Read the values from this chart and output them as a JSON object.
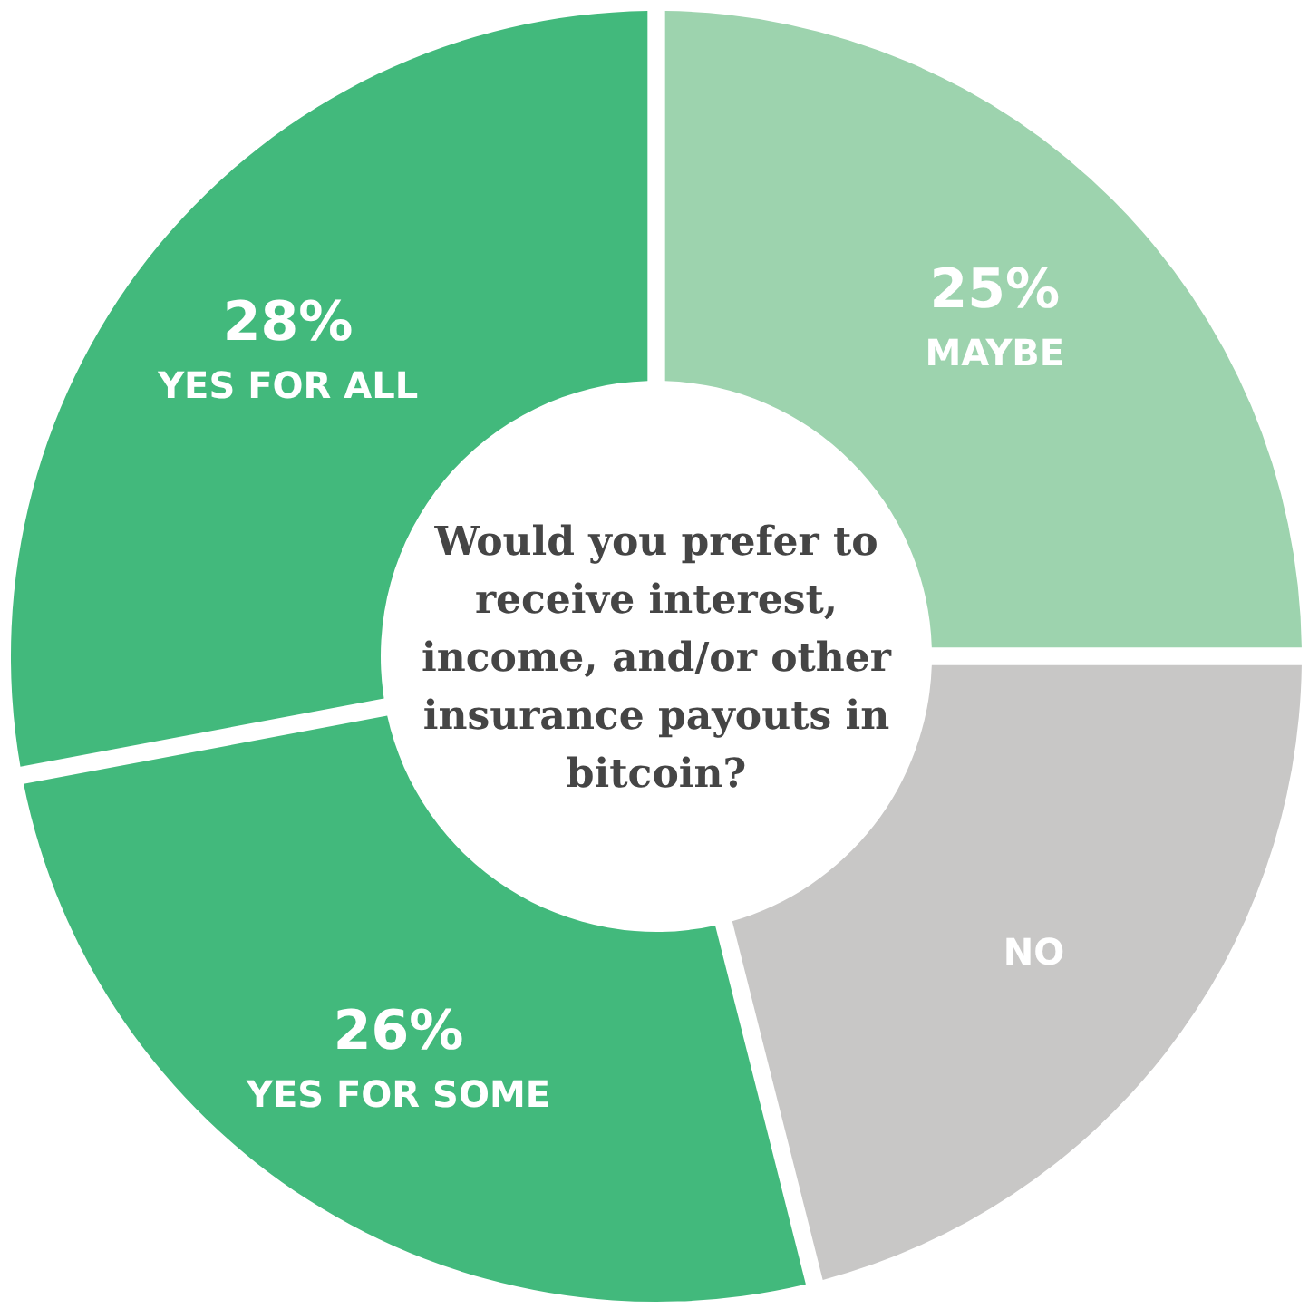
{
  "chart_data": {
    "type": "donut",
    "title": "Would you prefer to receive interest, income, and/or other insurance payouts in bitcoin?",
    "categories": [
      "MAYBE",
      "NO",
      "YES FOR SOME",
      "YES FOR ALL"
    ],
    "values": [
      25,
      21,
      26,
      28
    ],
    "colors": [
      "#9dd3ae",
      "#c8c7c6",
      "#42b97c",
      "#42b97c"
    ],
    "value_labels": [
      "25%",
      null,
      "26%",
      "28%"
    ]
  }
}
